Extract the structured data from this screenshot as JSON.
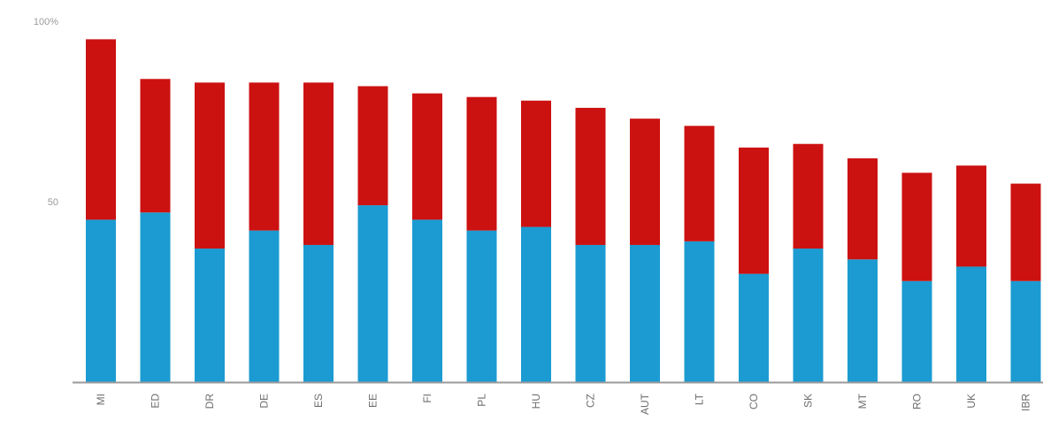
{
  "chart_data": {
    "type": "bar",
    "stacked": true,
    "title": "",
    "xlabel": "",
    "ylabel": "",
    "ylim": [
      0,
      100
    ],
    "yticks": [
      {
        "value": 50,
        "label": "50"
      },
      {
        "value": 100,
        "label": "100%"
      }
    ],
    "grid": false,
    "legend": "none",
    "categories": [
      "MI",
      "ED",
      "DR",
      "DE",
      "ES",
      "EE",
      "FI",
      "PL",
      "HU",
      "CZ",
      "AUT",
      "LT",
      "CO",
      "SK",
      "MT",
      "RO",
      "UK",
      "IBR"
    ],
    "series": [
      {
        "values": [
          45,
          47,
          37,
          42,
          38,
          49,
          45,
          42,
          43,
          38,
          38,
          39,
          30,
          37,
          34,
          28,
          32,
          28
        ]
      },
      {
        "values": [
          50,
          37,
          46,
          41,
          45,
          33,
          35,
          37,
          35,
          38,
          35,
          32,
          35,
          29,
          28,
          30,
          28,
          27
        ]
      }
    ],
    "colors": [
      "#1b9bd1",
      "#cc1111"
    ],
    "baseline_color": "#9a9a9a"
  }
}
